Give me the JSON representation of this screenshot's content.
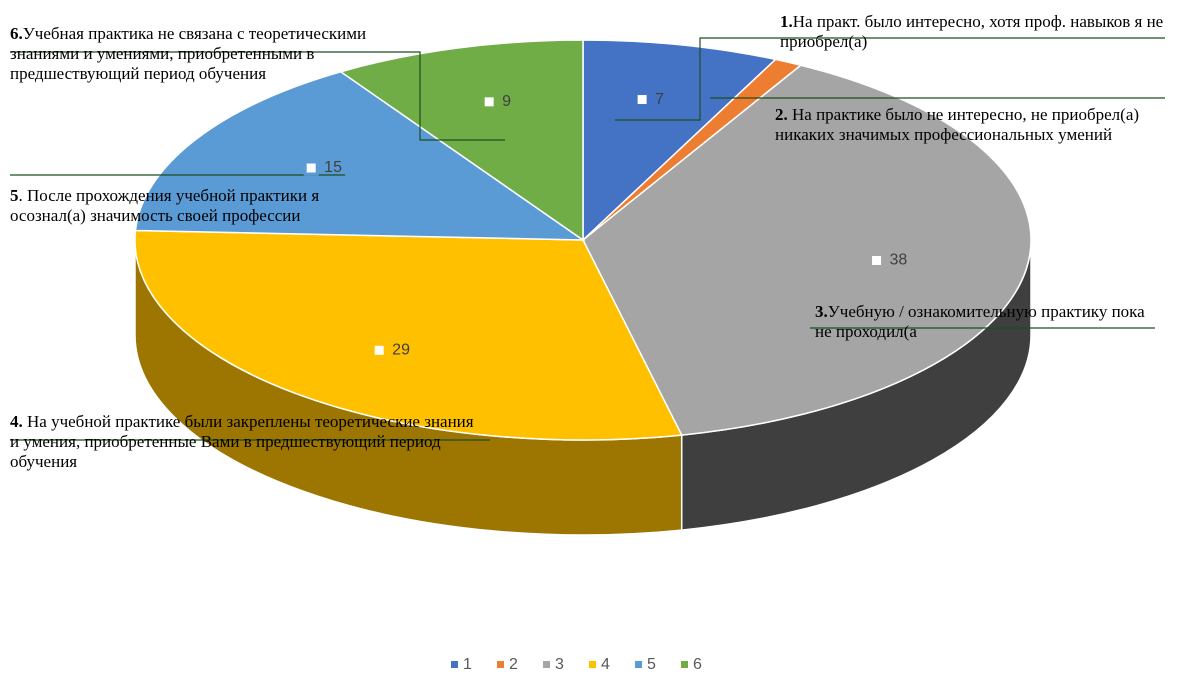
{
  "chart_data": {
    "type": "pie3d",
    "categories": [
      "1",
      "2",
      "3",
      "4",
      "5",
      "6"
    ],
    "values": [
      7,
      1,
      38,
      29,
      15,
      9
    ],
    "value_labels": [
      "7",
      null,
      "38",
      "29",
      "15",
      "9"
    ],
    "colors": [
      "#4472c4",
      "#ed7d31",
      "#a5a5a5",
      "#ffc000",
      "#5b9bd5",
      "#70ad47"
    ],
    "side_colors": [
      "#2f5597",
      "#b55a1e",
      "#3f3f3f",
      "#9c7600",
      "#3a6fa0",
      "#4c7a30"
    ],
    "legend": "bottom",
    "annotations": [
      {
        "number": "1.",
        "text": "На практ. было интересно, хотя проф. навыков я не приобрел(а)"
      },
      {
        "number": "2.",
        "text": " На практике было не интересно, не приобрел(а) никаких значимых профессиональных умений"
      },
      {
        "number": "3.",
        "text": "Учебную / ознакомительную практику пока не проходил(а"
      },
      {
        "number": "4.",
        "text": " На учебной практике были закреплены теоретические знания и умения, приобретенные Вами в предшествующий период обучения"
      },
      {
        "number": "5",
        "text": ". После прохождения учебной практики я осознал(а) значимость своей профессии"
      },
      {
        "number": "6.",
        "text": "Учебная практика не связана с теоретическими знаниями и умениями, приобретенными в предшествующий период обучения"
      }
    ]
  }
}
